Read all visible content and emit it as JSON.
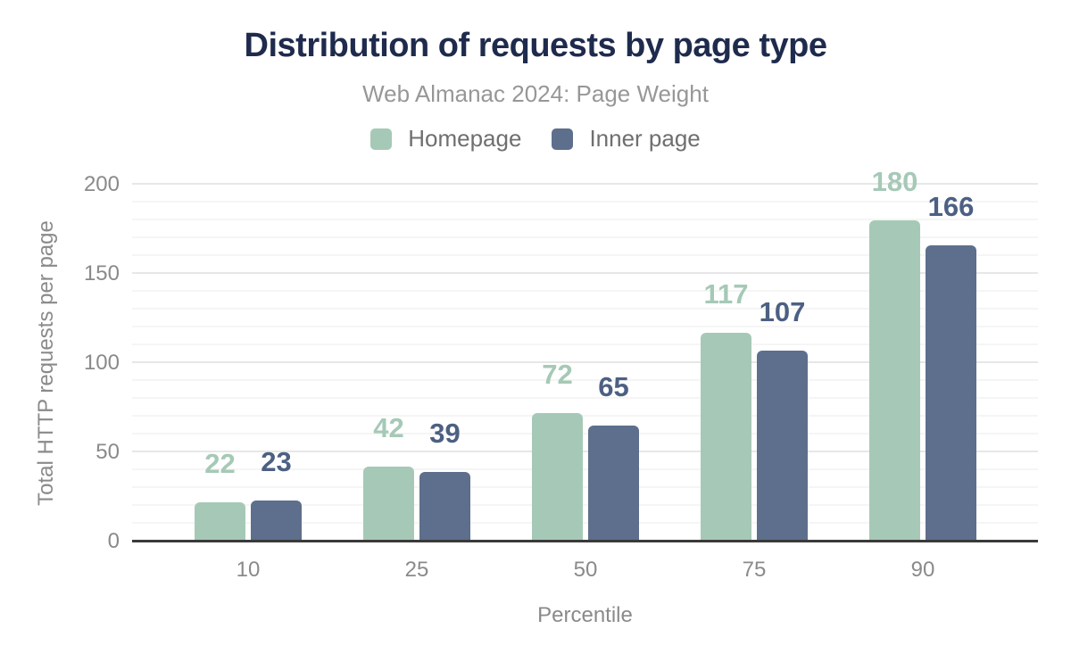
{
  "chart_data": {
    "type": "bar",
    "title": "Distribution of requests by page type",
    "subtitle": "Web Almanac 2024: Page Weight",
    "xlabel": "Percentile",
    "ylabel": "Total HTTP requests per page",
    "categories": [
      "10",
      "25",
      "50",
      "75",
      "90"
    ],
    "series": [
      {
        "name": "Homepage",
        "color": "#a6c9b7",
        "label_color": "#a6c9b7",
        "values": [
          22,
          42,
          72,
          117,
          180
        ]
      },
      {
        "name": "Inner page",
        "color": "#5d6f8c",
        "label_color": "#4d6083",
        "values": [
          23,
          39,
          65,
          107,
          166
        ]
      }
    ],
    "ylim": [
      0,
      200
    ],
    "yticks": [
      0,
      50,
      100,
      150,
      200
    ],
    "minor_grid_step": 10,
    "major_grid_step": 50,
    "grid": true,
    "legend_position": "top",
    "value_labels_shown": true
  },
  "colors": {
    "title": "#1f2b4d",
    "subtitle": "#979797",
    "legend_text": "#6f6f6f",
    "tick_text": "#8a8a8a",
    "axis_line": "#3a3a3a",
    "major_gridline": "#e7e7e7",
    "minor_gridline": "#f5f5f5",
    "background": "#ffffff"
  }
}
